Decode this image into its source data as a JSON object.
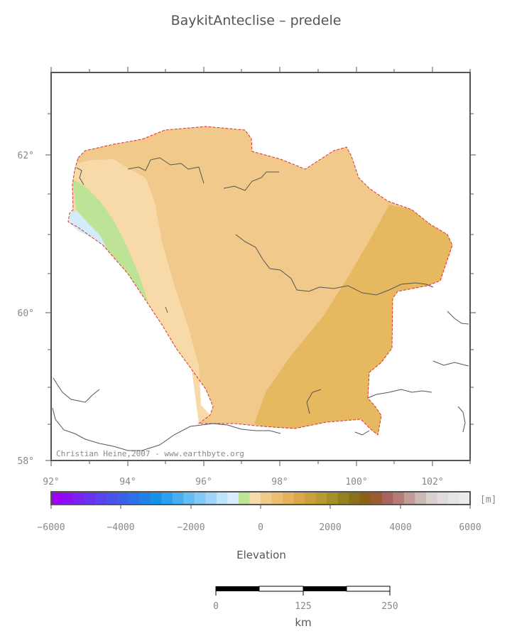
{
  "title": "BaykitAnteclise – predele",
  "map": {
    "lat_ticks": [
      {
        "label": "62°"
      },
      {
        "label": "60°"
      },
      {
        "label": "58°"
      }
    ],
    "lon_ticks": [
      {
        "label": "92°"
      },
      {
        "label": "94°"
      },
      {
        "label": "96°"
      },
      {
        "label": "98°"
      },
      {
        "label": "100°"
      },
      {
        "label": "102°"
      }
    ],
    "credit": "Christian Heine,2007 - www.earthbyte.org",
    "colors": {
      "region_main": "#f1c98a",
      "region_high": "#e6b85f",
      "region_low": "#f8d9a8",
      "region_green": "#bde397",
      "region_water": "#d3ecf9",
      "outline": "#e03030",
      "rivers": "#555555"
    }
  },
  "colorbar": {
    "unit": "[m]",
    "ticks": [
      "−6000",
      "−4000",
      "−2000",
      "0",
      "2000",
      "4000",
      "6000"
    ],
    "label": "Elevation",
    "colors": [
      "#9c00f5",
      "#8a10f2",
      "#7a22f0",
      "#6a32ee",
      "#5a42ec",
      "#4a52ea",
      "#3a62e8",
      "#2c72e6",
      "#1f82e4",
      "#1592e8",
      "#2aa0ee",
      "#48aef2",
      "#66bcf4",
      "#84c8f6",
      "#a2d4f8",
      "#c0e2fa",
      "#d8eefb",
      "#bde397",
      "#f8d9a8",
      "#f1c98a",
      "#ebbe72",
      "#e5b35e",
      "#d8a84a",
      "#c9a03a",
      "#b89a30",
      "#a68e28",
      "#958020",
      "#8a7018",
      "#8c6018",
      "#9c5a30",
      "#a8645c",
      "#b47c78",
      "#c09c98",
      "#ccb8b6",
      "#d8d0cf",
      "#e0dcdc",
      "#e6e4e4",
      "#ebebeb"
    ]
  },
  "scalebar": {
    "ticks": [
      "0",
      "125",
      "250"
    ],
    "unit": "km"
  }
}
